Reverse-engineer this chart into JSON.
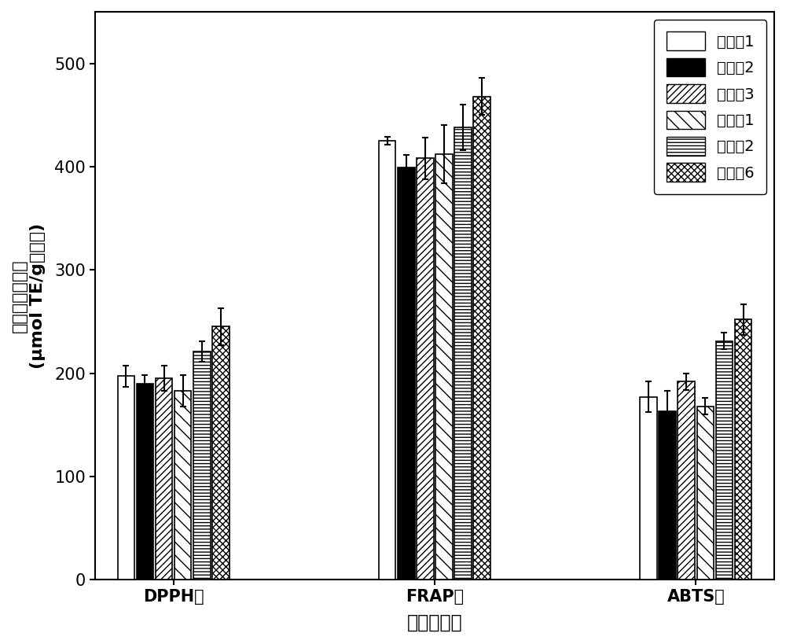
{
  "categories": [
    "DPPH法",
    "FRAP法",
    "ABTS法"
  ],
  "series_labels": [
    "实施例1",
    "实施例2",
    "实施例3",
    "对比例1",
    "对比例2",
    "对比例6"
  ],
  "values": [
    [
      197,
      425,
      177
    ],
    [
      190,
      399,
      163
    ],
    [
      195,
      408,
      192
    ],
    [
      183,
      412,
      168
    ],
    [
      221,
      438,
      231
    ],
    [
      245,
      468,
      252
    ]
  ],
  "errors": [
    [
      10,
      4,
      15
    ],
    [
      8,
      12,
      20
    ],
    [
      12,
      20,
      8
    ],
    [
      15,
      28,
      8
    ],
    [
      10,
      22,
      8
    ],
    [
      18,
      18,
      15
    ]
  ],
  "ylabel_line1": "自由基清除能力",
  "ylabel_line2": "(μmol TE/g花色苷)",
  "xlabel": "抗氧化方法",
  "ylim": [
    0,
    550
  ],
  "yticks": [
    0,
    100,
    200,
    300,
    400,
    500
  ],
  "bar_width": 0.13,
  "background_color": "#ffffff",
  "edge_color": "#000000",
  "font_size": 14,
  "label_font_size": 16,
  "tick_font_size": 15
}
